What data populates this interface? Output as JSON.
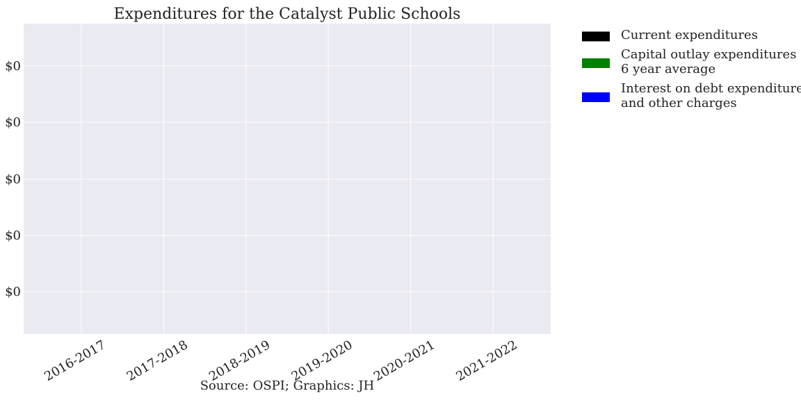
{
  "chart_data": {
    "type": "bar",
    "title": "Expenditures for the Catalyst Public Schools",
    "caption": "Source: OSPI; Graphics: JH",
    "categories": [
      "2016-2017",
      "2017-2018",
      "2018-2019",
      "2019-2020",
      "2020-2021",
      "2021-2022"
    ],
    "y_tick_labels": [
      "$0",
      "$0",
      "$0",
      "$0",
      "$0"
    ],
    "series": [
      {
        "name": "Current expenditures",
        "color": "#000000",
        "values": [
          0,
          0,
          0,
          0,
          0,
          0
        ]
      },
      {
        "name": "Capital outlay expenditures\n6 year average",
        "color": "#008000",
        "values": [
          0,
          0,
          0,
          0,
          0,
          0
        ]
      },
      {
        "name": "Interest on debt expenditures\nand other charges",
        "color": "#0000ff",
        "values": [
          0,
          0,
          0,
          0,
          0,
          0
        ]
      }
    ],
    "legend": "outside-top-right",
    "grid": true,
    "background": "#eaeaf2",
    "xlabel": "",
    "ylabel": ""
  }
}
